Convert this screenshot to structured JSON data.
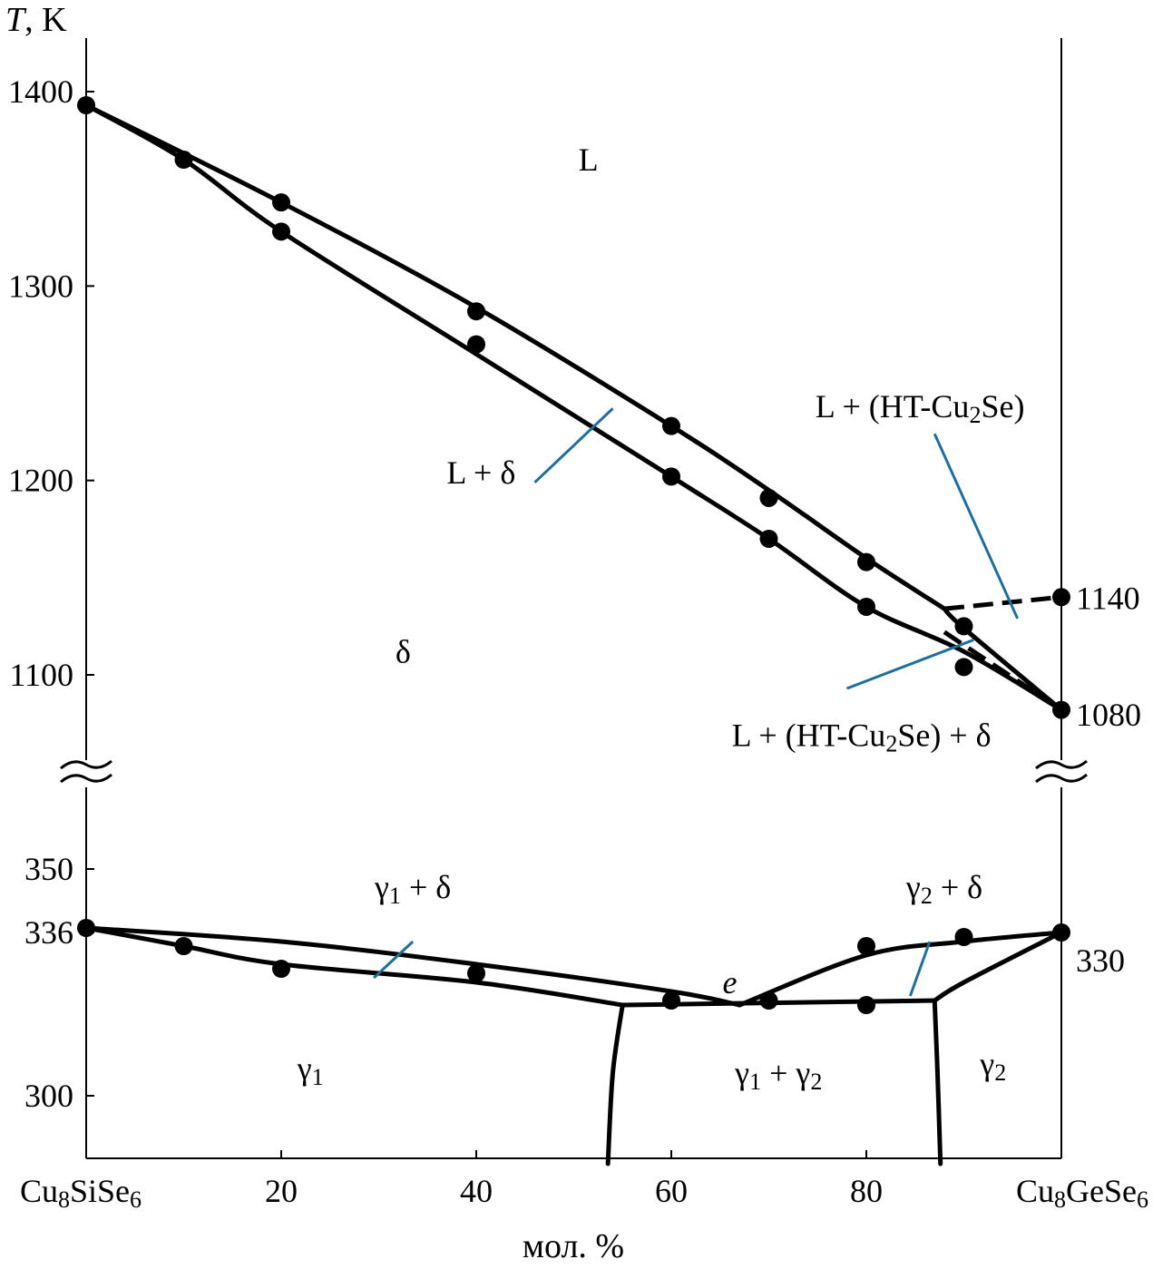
{
  "chart_data": {
    "type": "scatter",
    "title": "",
    "ylabel": "T, K",
    "xlabel": "мол. %",
    "x_axis": {
      "range": [
        0,
        100
      ],
      "ticks": [
        {
          "value": 0,
          "label": "Cu8SiSe6",
          "formula": [
            {
              "t": "Cu"
            },
            {
              "s": "8"
            },
            {
              "t": "SiSe"
            },
            {
              "s": "6"
            }
          ]
        },
        {
          "value": 20,
          "label": "20"
        },
        {
          "value": 40,
          "label": "40"
        },
        {
          "value": 60,
          "label": "60"
        },
        {
          "value": 80,
          "label": "80"
        },
        {
          "value": 100,
          "label": "Cu8GeSe6",
          "formula": [
            {
              "t": "Cu"
            },
            {
              "s": "8"
            },
            {
              "t": "GeSe"
            },
            {
              "s": "6"
            }
          ]
        }
      ]
    },
    "y_axis": {
      "broken": true,
      "upper_range": [
        1060,
        1430
      ],
      "lower_range": [
        285,
        370
      ],
      "ticks": [
        {
          "value": 1400,
          "label": "1400"
        },
        {
          "value": 1300,
          "label": "1300"
        },
        {
          "value": 1200,
          "label": "1200"
        },
        {
          "value": 1100,
          "label": "1100"
        },
        {
          "value": 350,
          "label": "350"
        },
        {
          "value": 336,
          "label": "336"
        },
        {
          "value": 300,
          "label": "300"
        }
      ]
    },
    "right_annotations": [
      {
        "value": 1140,
        "label": "1140"
      },
      {
        "value": 1080,
        "label": "1080"
      },
      {
        "value": 330,
        "label": "330"
      }
    ],
    "series": [
      {
        "points": [
          [
            0,
            1393
          ],
          [
            10,
            1365
          ],
          [
            20,
            1343
          ],
          [
            20,
            1328
          ],
          [
            40,
            1287
          ],
          [
            40,
            1270
          ],
          [
            60,
            1228
          ],
          [
            60,
            1202
          ],
          [
            70,
            1191
          ],
          [
            70,
            1170
          ],
          [
            80,
            1158
          ],
          [
            80,
            1135
          ],
          [
            90,
            1125
          ],
          [
            90,
            1104
          ],
          [
            100,
            1140
          ],
          [
            100,
            1082
          ]
        ]
      },
      {
        "points": [
          [
            0,
            337
          ],
          [
            10,
            333
          ],
          [
            20,
            328
          ],
          [
            40,
            327
          ],
          [
            60,
            321
          ],
          [
            70,
            321
          ],
          [
            80,
            320
          ],
          [
            80,
            333
          ],
          [
            90,
            335
          ],
          [
            100,
            336
          ]
        ]
      }
    ],
    "lines": {
      "liquidus": [
        [
          0,
          1393
        ],
        [
          20,
          1343
        ],
        [
          40,
          1289
        ],
        [
          60,
          1228
        ],
        [
          70,
          1195
        ],
        [
          80,
          1160
        ],
        [
          88,
          1134
        ]
      ],
      "solidus": [
        [
          0,
          1393
        ],
        [
          10,
          1365
        ],
        [
          20,
          1328
        ],
        [
          40,
          1265
        ],
        [
          60,
          1202
        ],
        [
          70,
          1170
        ],
        [
          80,
          1135
        ],
        [
          90,
          1112
        ],
        [
          100,
          1082
        ]
      ],
      "peritectic_dashed": [
        [
          88,
          1134
        ],
        [
          100,
          1140
        ]
      ],
      "ht_boundary": [
        [
          88,
          1134
        ],
        [
          90,
          1124
        ],
        [
          100,
          1082
        ]
      ],
      "inner_dashed": [
        [
          88,
          1122
        ],
        [
          100,
          1082
        ]
      ],
      "g1_upper": [
        [
          0,
          337
        ],
        [
          20,
          334
        ],
        [
          40,
          329
        ],
        [
          60,
          323
        ],
        [
          67,
          320
        ]
      ],
      "g1_lower": [
        [
          0,
          337
        ],
        [
          10,
          333
        ],
        [
          20,
          329
        ],
        [
          40,
          325
        ],
        [
          55,
          320
        ]
      ],
      "eutectic": [
        [
          55,
          320
        ],
        [
          87,
          321
        ]
      ],
      "g2_upper": [
        [
          67,
          320
        ],
        [
          80,
          331
        ],
        [
          90,
          334
        ],
        [
          100,
          336
        ]
      ],
      "g2_lower": [
        [
          87,
          321
        ],
        [
          90,
          325
        ],
        [
          100,
          336
        ]
      ],
      "g1_solvus": [
        [
          55,
          320
        ],
        [
          54,
          305
        ],
        [
          53.5,
          285
        ]
      ],
      "g2_solvus": [
        [
          87,
          321
        ],
        [
          87.3,
          305
        ],
        [
          87.6,
          285
        ]
      ]
    },
    "region_labels": [
      {
        "id": "L",
        "parts": [
          {
            "t": "L"
          }
        ],
        "x": 51.5,
        "y": 1365,
        "axis": "upper"
      },
      {
        "id": "L-delta",
        "parts": [
          {
            "t": "L + δ"
          }
        ],
        "x": 40.5,
        "y": 1204,
        "axis": "upper"
      },
      {
        "id": "delta",
        "parts": [
          {
            "t": "δ"
          }
        ],
        "x": 32.5,
        "y": 1112,
        "axis": "upper"
      },
      {
        "id": "L-HT",
        "parts": [
          {
            "t": "L + (HT-Cu"
          },
          {
            "s": "2"
          },
          {
            "t": "Se)"
          }
        ],
        "x": 85.5,
        "y": 1238,
        "axis": "upper"
      },
      {
        "id": "L-HT-delta",
        "parts": [
          {
            "t": "L + (HT-Cu"
          },
          {
            "s": "2"
          },
          {
            "t": "Se) + δ"
          }
        ],
        "x": 79.5,
        "y": 1069,
        "axis": "upper"
      },
      {
        "id": "g1-delta",
        "parts": [
          {
            "t": "γ"
          },
          {
            "s": "1"
          },
          {
            "t": " + δ"
          }
        ],
        "x": 33.5,
        "y": 346,
        "axis": "lower"
      },
      {
        "id": "g2-delta",
        "parts": [
          {
            "t": "γ"
          },
          {
            "s": "2"
          },
          {
            "t": " + δ"
          }
        ],
        "x": 88,
        "y": 346,
        "axis": "lower"
      },
      {
        "id": "e",
        "parts": [
          {
            "t": "e"
          }
        ],
        "x": 66,
        "y": 325,
        "axis": "lower",
        "italic": true
      },
      {
        "id": "g1",
        "parts": [
          {
            "t": "γ"
          },
          {
            "s": "1"
          }
        ],
        "x": 23,
        "y": 306,
        "axis": "lower"
      },
      {
        "id": "g1-g2",
        "parts": [
          {
            "t": "γ"
          },
          {
            "s": "1"
          },
          {
            "t": " + γ"
          },
          {
            "s": "2"
          }
        ],
        "x": 71,
        "y": 305,
        "axis": "lower"
      },
      {
        "id": "g2",
        "parts": [
          {
            "t": "γ"
          },
          {
            "s": "2"
          }
        ],
        "x": 93,
        "y": 307,
        "axis": "lower"
      }
    ],
    "leaders": [
      {
        "from": [
          46,
          1199
        ],
        "to": [
          54,
          1237
        ],
        "axis": "upper"
      },
      {
        "from": [
          87,
          1224
        ],
        "to": [
          95.5,
          1129
        ],
        "axis": "upper"
      },
      {
        "from": [
          78,
          1093
        ],
        "to": [
          91,
          1118
        ],
        "axis": "upper"
      },
      {
        "from": [
          29.5,
          326
        ],
        "to": [
          33.5,
          334
        ],
        "axis": "lower"
      },
      {
        "from": [
          84.5,
          322
        ],
        "to": [
          86.5,
          334
        ],
        "axis": "lower"
      }
    ]
  }
}
